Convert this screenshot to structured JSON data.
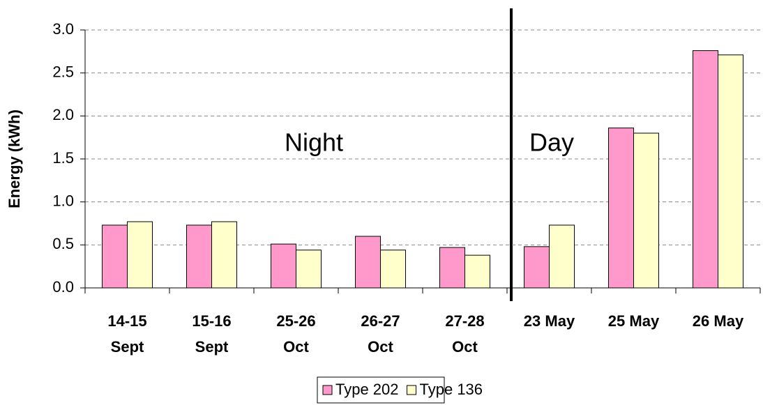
{
  "chart_data": {
    "type": "bar",
    "y_label": "Energy (kWh)",
    "categories": [
      "14-15\nSept",
      "15-16\nSept",
      "25-26\nOct",
      "26-27\nOct",
      "27-28\nOct",
      "23 May",
      "25 May",
      "26 May"
    ],
    "series": [
      {
        "name": "Type 202",
        "color": "#ff99cc",
        "values": [
          0.73,
          0.73,
          0.51,
          0.6,
          0.47,
          0.48,
          1.86,
          2.76
        ]
      },
      {
        "name": "Type 136",
        "color": "#ffffcc",
        "values": [
          0.77,
          0.77,
          0.44,
          0.44,
          0.38,
          0.73,
          1.8,
          2.71
        ]
      }
    ],
    "ylim": [
      0,
      3
    ],
    "yticks": [
      {
        "value": 0,
        "label": "0.0"
      },
      {
        "value": 0.5,
        "label": "0.5"
      },
      {
        "value": 1,
        "label": "1.0"
      },
      {
        "value": 1.5,
        "label": "1.5"
      },
      {
        "value": 2,
        "label": "2.0"
      },
      {
        "value": 2.5,
        "label": "2.5"
      },
      {
        "value": 3,
        "label": "3.0"
      }
    ],
    "grid": true,
    "annotations": [
      "Night",
      "Day"
    ],
    "legend": "bottom"
  }
}
